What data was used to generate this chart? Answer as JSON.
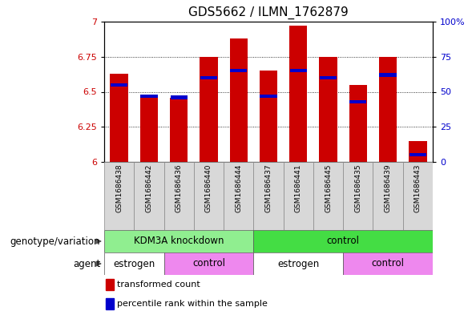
{
  "title": "GDS5662 / ILMN_1762879",
  "samples": [
    "GSM1686438",
    "GSM1686442",
    "GSM1686436",
    "GSM1686440",
    "GSM1686444",
    "GSM1686437",
    "GSM1686441",
    "GSM1686445",
    "GSM1686435",
    "GSM1686439",
    "GSM1686443"
  ],
  "transformed_counts": [
    6.63,
    6.47,
    6.46,
    6.75,
    6.88,
    6.65,
    6.97,
    6.75,
    6.55,
    6.75,
    6.15
  ],
  "percentile_ranks": [
    55,
    47,
    46,
    60,
    65,
    47,
    65,
    60,
    43,
    62,
    5
  ],
  "y_min": 6.0,
  "y_max": 7.0,
  "y_ticks_left": [
    6.0,
    6.25,
    6.5,
    6.75,
    7.0
  ],
  "y_tick_labels_left": [
    "6",
    "6.25",
    "6.5",
    "6.75",
    "7"
  ],
  "y_ticks_right": [
    0,
    25,
    50,
    75,
    100
  ],
  "y_tick_labels_right": [
    "0",
    "25",
    "50",
    "75",
    "100%"
  ],
  "bar_color": "#CC0000",
  "percentile_color": "#0000CC",
  "bar_width": 0.6,
  "title_fontsize": 11,
  "tick_fontsize": 8,
  "small_fontsize": 7,
  "annot_fontsize": 8.5,
  "legend_fontsize": 8,
  "sample_label_bg": "#D8D8D8",
  "genotype_variation": [
    {
      "label": "KDM3A knockdown",
      "start": 0,
      "end": 5,
      "color": "#90EE90"
    },
    {
      "label": "control",
      "start": 5,
      "end": 11,
      "color": "#44DD44"
    }
  ],
  "agent": [
    {
      "label": "estrogen",
      "start": 0,
      "end": 2,
      "color": "#FFFFFF"
    },
    {
      "label": "control",
      "start": 2,
      "end": 5,
      "color": "#EE88EE"
    },
    {
      "label": "estrogen",
      "start": 5,
      "end": 8,
      "color": "#FFFFFF"
    },
    {
      "label": "control",
      "start": 8,
      "end": 11,
      "color": "#EE88EE"
    }
  ],
  "legend_items": [
    {
      "label": "transformed count",
      "color": "#CC0000"
    },
    {
      "label": "percentile rank within the sample",
      "color": "#0000CC"
    }
  ]
}
